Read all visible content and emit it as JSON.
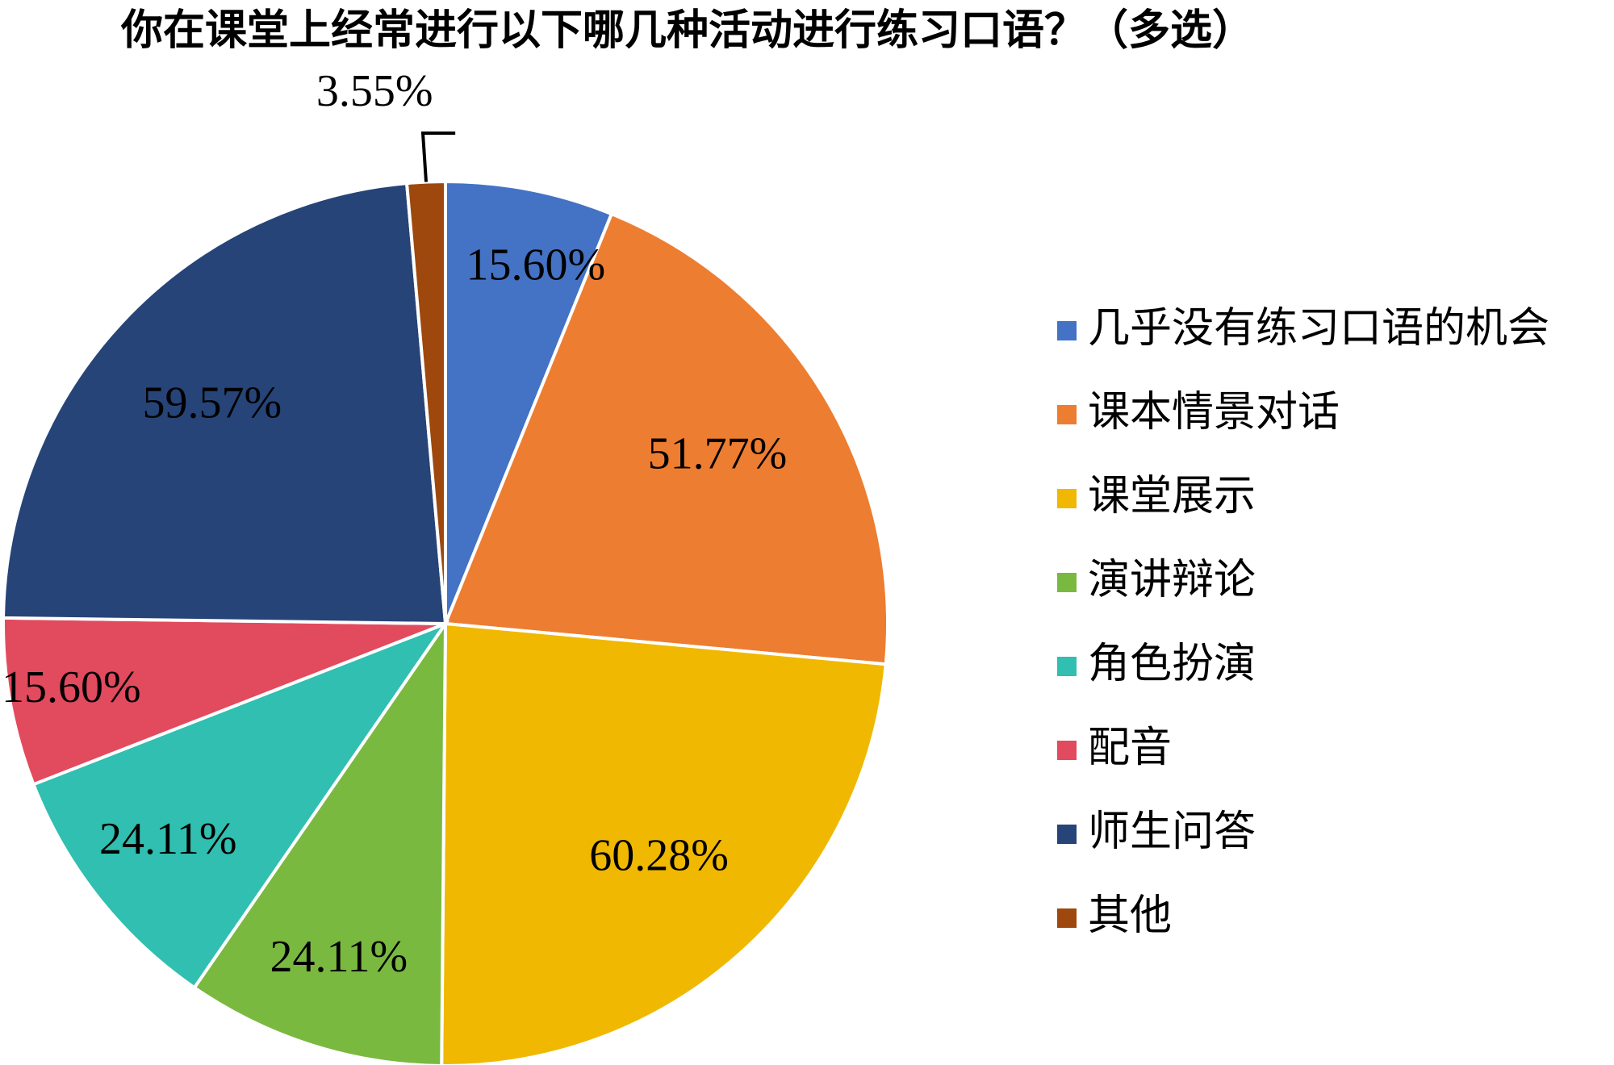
{
  "chart_data": {
    "type": "pie",
    "title": "你在课堂上经常进行以下哪几种活动进行练习口语？（多选）",
    "categories": [
      "几乎没有练习口语的机会",
      "课本情景对话",
      "课堂展示",
      "演讲辩论",
      "角色扮演",
      "配音",
      "师生问答",
      "其他"
    ],
    "values": [
      15.6,
      51.77,
      60.28,
      24.11,
      24.11,
      15.6,
      59.57,
      3.55
    ],
    "labels": [
      "15.60%",
      "51.77%",
      "60.28%",
      "24.11%",
      "24.11%",
      "15.60%",
      "59.57%",
      "3.55%"
    ],
    "colors": [
      "#4472C4",
      "#ED7D31",
      "#F0B800",
      "#7AB940",
      "#30BFB0",
      "#E24A5E",
      "#264478",
      "#9E480E"
    ],
    "legend_position": "right",
    "start_angle": "top",
    "direction": "clockwise"
  }
}
